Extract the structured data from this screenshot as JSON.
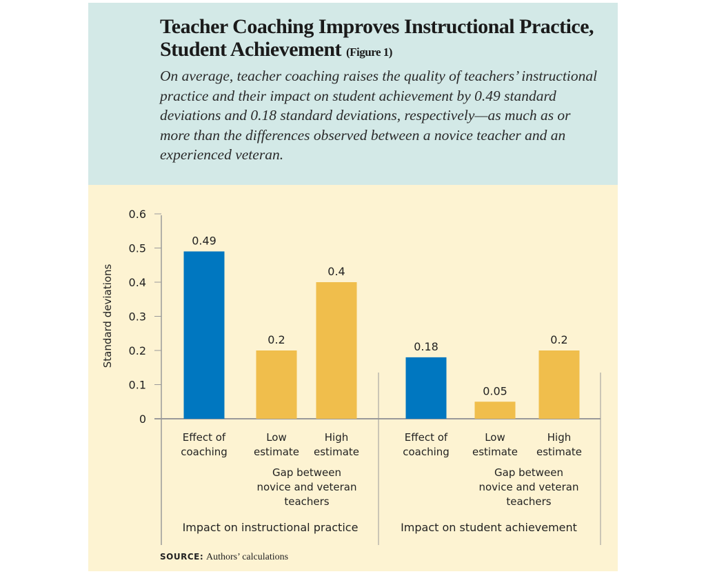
{
  "title": "Teacher Coaching Improves Instructional Practice, Student Achievement",
  "figure_label": "(Figure 1)",
  "subtitle": "On average, teacher coaching raises the quality of teachers’ instructional practice and their impact on student achievement by 0.49 standard deviations and 0.18 standard deviations, respectively—as much as or more than the differences observed between a novice teacher and an experienced veteran.",
  "source_label": "SOURCE:",
  "source_text": "Authors’ calculations",
  "colors": {
    "coaching": "#0077c0",
    "gap": "#f0be4c",
    "header_bg": "#d3e9e7",
    "chart_bg": "#fdf3d2"
  },
  "chart_data": {
    "type": "bar",
    "ylabel": "Standard deviations",
    "ylim": [
      0,
      0.6
    ],
    "yticks": [
      "0",
      "0.1",
      "0.2",
      "0.3",
      "0.4",
      "0.5",
      "0.6"
    ],
    "grid": false,
    "groups": [
      {
        "label": "Impact on instructional practice",
        "subgroup_label": "Gap between novice and veteran teachers",
        "bars": [
          {
            "label": "Effect of coaching",
            "value": 0.49,
            "value_label": "0.49",
            "color": "coaching"
          },
          {
            "label": "Low estimate",
            "value": 0.2,
            "value_label": "0.2",
            "color": "gap"
          },
          {
            "label": "High estimate",
            "value": 0.4,
            "value_label": "0.4",
            "color": "gap"
          }
        ]
      },
      {
        "label": "Impact on student achievement",
        "subgroup_label": "Gap between novice and veteran teachers",
        "bars": [
          {
            "label": "Effect of coaching",
            "value": 0.18,
            "value_label": "0.18",
            "color": "coaching"
          },
          {
            "label": "Low estimate",
            "value": 0.05,
            "value_label": "0.05",
            "color": "gap"
          },
          {
            "label": "High estimate",
            "value": 0.2,
            "value_label": "0.2",
            "color": "gap"
          }
        ]
      }
    ]
  }
}
